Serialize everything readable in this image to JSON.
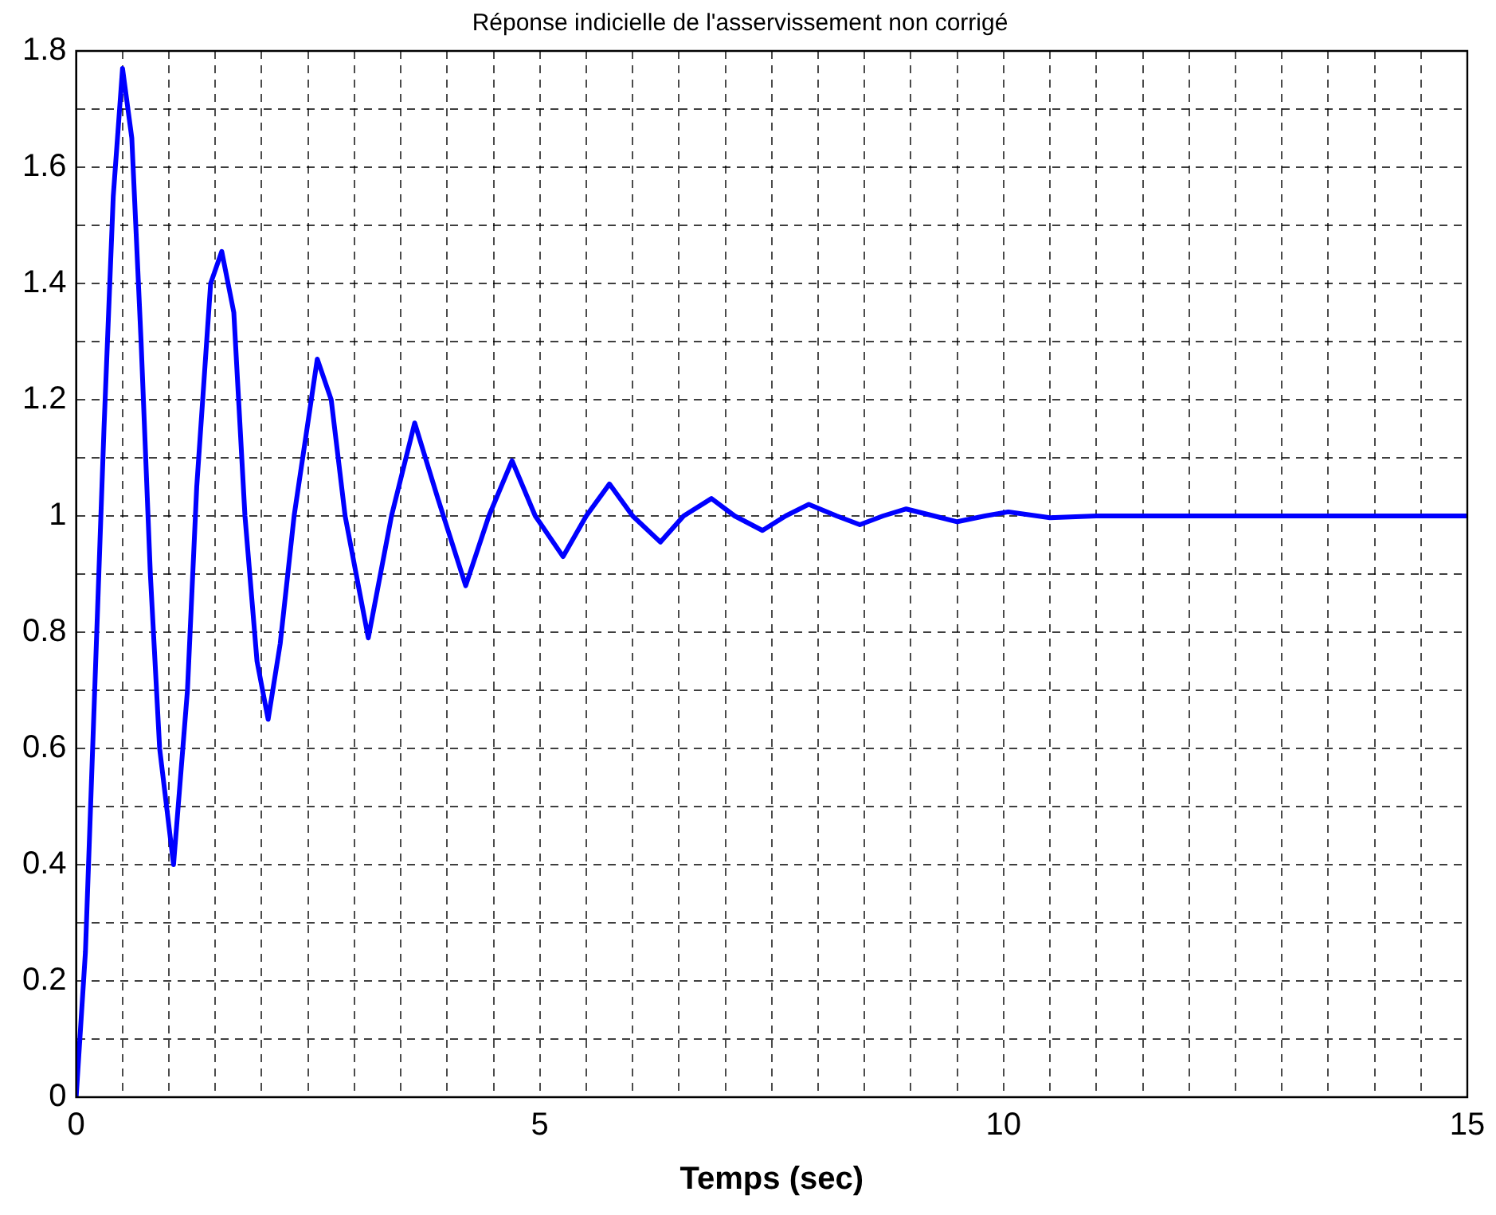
{
  "chart_data": {
    "type": "line",
    "title": "Réponse indicielle de l'asservissement non corrigé",
    "xlabel": "Temps (sec)",
    "x": [
      0,
      0.1,
      0.2,
      0.3,
      0.4,
      0.5,
      0.6,
      0.7,
      0.8,
      0.9,
      1.05,
      1.2,
      1.3,
      1.45,
      1.57,
      1.7,
      1.82,
      1.95,
      2.07,
      2.2,
      2.35,
      2.6,
      2.75,
      2.9,
      3.15,
      3.4,
      3.65,
      3.9,
      4.2,
      4.45,
      4.7,
      4.95,
      5.25,
      5.5,
      5.75,
      6.0,
      6.3,
      6.55,
      6.85,
      7.1,
      7.4,
      7.65,
      7.9,
      8.2,
      8.45,
      8.7,
      8.95,
      9.25,
      9.5,
      9.8,
      10.05,
      10.5,
      11,
      12,
      13,
      14,
      15
    ],
    "series": [
      {
        "color": "#0000ff",
        "values": [
          0,
          0.25,
          0.7,
          1.15,
          1.55,
          1.77,
          1.65,
          1.3,
          0.9,
          0.6,
          0.4,
          0.7,
          1.05,
          1.4,
          1.455,
          1.35,
          1.0,
          0.75,
          0.65,
          0.78,
          1.0,
          1.27,
          1.2,
          1.0,
          0.79,
          1.0,
          1.16,
          1.03,
          0.88,
          1.0,
          1.095,
          1.0,
          0.93,
          1.0,
          1.055,
          1.0,
          0.955,
          1.0,
          1.03,
          1.0,
          0.975,
          1.0,
          1.02,
          1.0,
          0.985,
          1.0,
          1.012,
          1.0,
          0.99,
          1.0,
          1.007,
          0.997,
          1.0,
          1.0,
          1.0,
          1.0,
          1.0
        ]
      }
    ],
    "xlim": [
      0,
      15
    ],
    "ylim": [
      0,
      1.8
    ],
    "xticks": [
      0,
      {
        "value": 0.5,
        "label": null
      },
      {
        "value": 1,
        "label": null
      },
      {
        "value": 1.5,
        "label": null
      },
      {
        "value": 2,
        "label": null
      },
      {
        "value": 2.5,
        "label": null
      },
      {
        "value": 3,
        "label": null
      },
      {
        "value": 3.5,
        "label": null
      },
      {
        "value": 4,
        "label": null
      },
      {
        "value": 4.5,
        "label": null
      },
      5,
      {
        "value": 5.5,
        "label": null
      },
      {
        "value": 6,
        "label": null
      },
      {
        "value": 6.5,
        "label": null
      },
      {
        "value": 7,
        "label": null
      },
      {
        "value": 7.5,
        "label": null
      },
      {
        "value": 8,
        "label": null
      },
      {
        "value": 8.5,
        "label": null
      },
      {
        "value": 9,
        "label": null
      },
      {
        "value": 9.5,
        "label": null
      },
      10,
      {
        "value": 10.5,
        "label": null
      },
      {
        "value": 11,
        "label": null
      },
      {
        "value": 11.5,
        "label": null
      },
      {
        "value": 12,
        "label": null
      },
      {
        "value": 12.5,
        "label": null
      },
      {
        "value": 13,
        "label": null
      },
      {
        "value": 13.5,
        "label": null
      },
      {
        "value": 14,
        "label": null
      },
      {
        "value": 14.5,
        "label": null
      },
      15
    ],
    "yticks": [
      0,
      {
        "value": 0.1,
        "label": null
      },
      0.2,
      {
        "value": 0.3,
        "label": null
      },
      0.4,
      {
        "value": 0.5,
        "label": null
      },
      0.6,
      {
        "value": 0.7,
        "label": null
      },
      0.8,
      {
        "value": 0.9,
        "label": null
      },
      1,
      {
        "value": 1.1,
        "label": null
      },
      1.2,
      {
        "value": 1.3,
        "label": null
      },
      1.4,
      {
        "value": 1.5,
        "label": null
      },
      1.6,
      {
        "value": 1.7,
        "label": null
      },
      1.8
    ],
    "grid": true,
    "marker": "none",
    "line_style": "solid"
  }
}
